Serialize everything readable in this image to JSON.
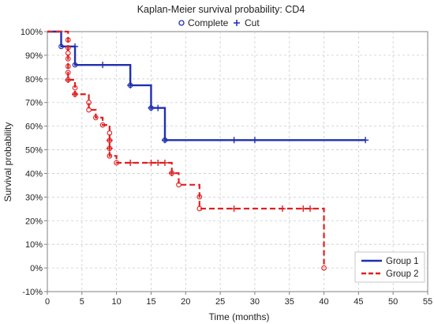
{
  "chart_data": {
    "type": "line",
    "subtype": "step",
    "title": "Kaplan-Meier survival probability: CD4",
    "xlabel": "Time (months)",
    "ylabel": "Survival probability",
    "xlim": [
      0,
      55
    ],
    "ylim": [
      -10,
      100
    ],
    "x_ticks": [
      0,
      5,
      10,
      15,
      20,
      25,
      30,
      35,
      40,
      45,
      50,
      55
    ],
    "y_ticks": [
      -10,
      0,
      10,
      20,
      30,
      40,
      50,
      60,
      70,
      80,
      90,
      100
    ],
    "y_tick_suffix": "%",
    "grid": true,
    "legend_placement": "bottom-right",
    "marker_legend_placement": "top-center",
    "marker_legend": [
      {
        "label": "Complete",
        "symbol": "circle"
      },
      {
        "label": "Cut",
        "symbol": "plus"
      }
    ],
    "series": [
      {
        "name": "Group 1",
        "color": "#1f2fb0",
        "line_style": "solid",
        "steps": [
          [
            0,
            100
          ],
          [
            2,
            93.7
          ],
          [
            4,
            85.9
          ],
          [
            12,
            77.3
          ],
          [
            15,
            67.7
          ],
          [
            17,
            54.1
          ],
          [
            46,
            54.1
          ]
        ],
        "events": [
          [
            2,
            93.7
          ],
          [
            4,
            85.9
          ],
          [
            12,
            77.3
          ],
          [
            15,
            67.7
          ],
          [
            17,
            54.1
          ]
        ],
        "censored": [
          [
            4,
            93.7
          ],
          [
            8,
            85.9
          ],
          [
            12,
            77.3
          ],
          [
            15,
            67.7
          ],
          [
            16,
            67.7
          ],
          [
            17,
            54.1
          ],
          [
            27,
            54.1
          ],
          [
            30,
            54.1
          ],
          [
            46,
            54.1
          ]
        ]
      },
      {
        "name": "Group 2",
        "color": "#e02020",
        "line_style": "dashed",
        "steps": [
          [
            0,
            100
          ],
          [
            3,
            96.5
          ],
          [
            3,
            93.2
          ],
          [
            3,
            90.9
          ],
          [
            3,
            88.5
          ],
          [
            3,
            85.3
          ],
          [
            3,
            82.7
          ],
          [
            3,
            79.6
          ],
          [
            4,
            76.2
          ],
          [
            4,
            73.5
          ],
          [
            6,
            70
          ],
          [
            6,
            66.9
          ],
          [
            7,
            63.6
          ],
          [
            8,
            60.5
          ],
          [
            9,
            57.1
          ],
          [
            9,
            54
          ],
          [
            9,
            50.6
          ],
          [
            9,
            47.4
          ],
          [
            10,
            44.5
          ],
          [
            18,
            40.1
          ],
          [
            19,
            35.2
          ],
          [
            22,
            30.1
          ],
          [
            22,
            25.1
          ],
          [
            40,
            25.1
          ],
          [
            40,
            0
          ]
        ],
        "events": [
          [
            3,
            96.5
          ],
          [
            3,
            93.2
          ],
          [
            3,
            90.9
          ],
          [
            3,
            88.5
          ],
          [
            3,
            85.3
          ],
          [
            3,
            82.7
          ],
          [
            3,
            79.6
          ],
          [
            4,
            76.2
          ],
          [
            4,
            73.5
          ],
          [
            6,
            70
          ],
          [
            6,
            66.9
          ],
          [
            7,
            63.6
          ],
          [
            8,
            60.5
          ],
          [
            9,
            57.1
          ],
          [
            9,
            54
          ],
          [
            9,
            50.6
          ],
          [
            9,
            47.4
          ],
          [
            10,
            44.5
          ],
          [
            18,
            40.1
          ],
          [
            19,
            35.2
          ],
          [
            22,
            30.1
          ],
          [
            22,
            25.1
          ],
          [
            40,
            0
          ]
        ],
        "censored": [
          [
            3,
            79.6
          ],
          [
            4,
            73.5
          ],
          [
            9,
            54
          ],
          [
            9,
            50.6
          ],
          [
            12,
            44.5
          ],
          [
            15,
            44.5
          ],
          [
            16,
            44.5
          ],
          [
            17,
            44.5
          ],
          [
            18,
            40.1
          ],
          [
            27,
            25.1
          ],
          [
            34,
            25.1
          ],
          [
            37,
            25.1
          ],
          [
            38,
            25.1
          ]
        ]
      }
    ]
  }
}
